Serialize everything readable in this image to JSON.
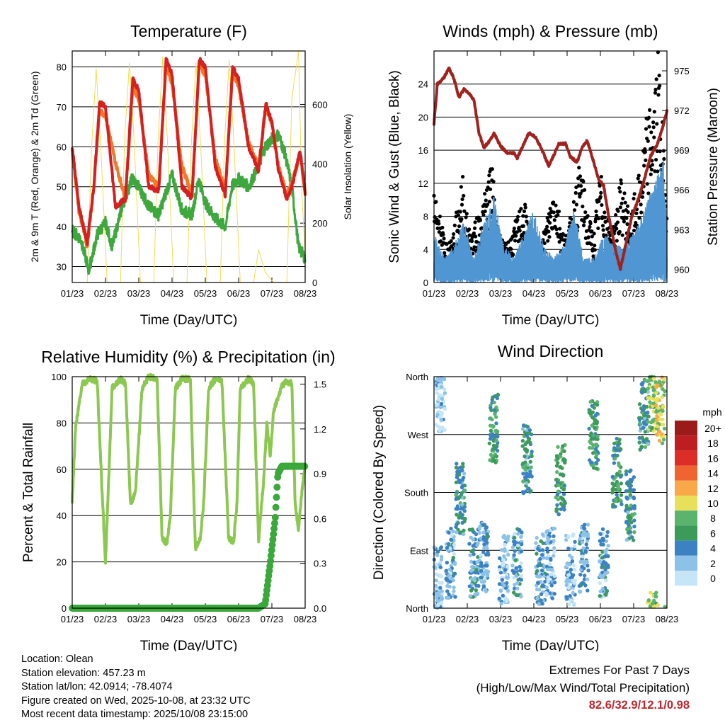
{
  "panels": {
    "temperature": {
      "title": "Temperature (F)",
      "ylabel": "2m & 9m T (Red, Orange) & 2m Td (Green)",
      "y2label": "Solar Insolation (Yellow)",
      "xlabel": "Time (Day/UTC)"
    },
    "winds": {
      "title": "Winds (mph) & Pressure (mb)",
      "ylabel": "Sonic Wind & Gust (Blue, Black)",
      "y2label": "Station Pressure (Maroon)",
      "xlabel": "Time (Day/UTC)"
    },
    "humidity": {
      "title": "Relative Humidity (%) & Precipitation (in)",
      "ylabel": "Percent & Total Rainfall",
      "xlabel": "Time (Day/UTC)"
    },
    "direction": {
      "title": "Wind Direction",
      "ylabel": "Direction (Colored By Speed)",
      "xlabel": "Time (Day/UTC)",
      "legend_title": "mph"
    }
  },
  "chart_data": [
    {
      "id": "temperature",
      "type": "line",
      "title": "Temperature (F)",
      "x_tick_labels": [
        "01/23",
        "02/23",
        "03/23",
        "04/23",
        "05/23",
        "06/23",
        "07/23",
        "08/23"
      ],
      "xlim": [
        0,
        7
      ],
      "ylim": [
        26,
        84
      ],
      "y_ticks": [
        30,
        40,
        50,
        60,
        70,
        80
      ],
      "y2lim": [
        0,
        780
      ],
      "y2_ticks": [
        0,
        200,
        400,
        600
      ],
      "series": [
        {
          "name": "2m T",
          "color": "#d42020",
          "x": [
            0.0,
            0.2,
            0.45,
            0.65,
            0.82,
            1.0,
            1.3,
            1.6,
            1.82,
            2.0,
            2.3,
            2.6,
            2.82,
            3.0,
            3.3,
            3.6,
            3.82,
            4.0,
            4.3,
            4.6,
            4.82,
            5.0,
            5.3,
            5.6,
            5.82,
            6.0,
            6.2,
            6.45,
            6.6,
            6.85,
            7.0
          ],
          "y": [
            60,
            45,
            36,
            50,
            71,
            70,
            45,
            47,
            77,
            74,
            50,
            49,
            82,
            78,
            50,
            47,
            82,
            80,
            55,
            48,
            80,
            77,
            60,
            54,
            71,
            66,
            54,
            47,
            50,
            59,
            48
          ]
        },
        {
          "name": "9m T",
          "color": "#f07828",
          "x": [
            0.0,
            0.2,
            0.45,
            0.65,
            0.82,
            1.0,
            1.3,
            1.6,
            1.82,
            2.0,
            2.3,
            2.6,
            2.82,
            3.0,
            3.3,
            3.6,
            3.82,
            4.0,
            4.3,
            4.6,
            4.82,
            5.0,
            5.3,
            5.6,
            5.82,
            6.0,
            6.2,
            6.45,
            6.6,
            6.85,
            7.0
          ],
          "y": [
            59,
            44,
            35,
            50,
            69,
            68,
            56,
            47,
            75,
            72,
            53,
            50,
            80,
            76,
            55,
            48,
            81,
            78,
            57,
            49,
            79,
            75,
            61,
            55,
            70,
            66,
            55,
            48,
            51,
            58,
            49
          ]
        },
        {
          "name": "2m Td",
          "color": "#3ea83e",
          "x": [
            0.0,
            0.25,
            0.5,
            0.75,
            1.0,
            1.2,
            1.5,
            1.8,
            2.0,
            2.3,
            2.6,
            2.8,
            3.0,
            3.3,
            3.6,
            3.8,
            4.0,
            4.3,
            4.6,
            4.8,
            5.0,
            5.3,
            5.6,
            5.8,
            6.0,
            6.2,
            6.4,
            6.6,
            6.8,
            7.0
          ],
          "y": [
            39,
            37,
            29,
            38,
            41,
            35,
            45,
            52,
            50,
            45,
            43,
            48,
            53,
            44,
            43,
            52,
            46,
            42,
            40,
            50,
            52,
            50,
            55,
            60,
            62,
            63,
            58,
            50,
            35,
            32
          ]
        },
        {
          "name": "Solar Insolation",
          "color": "#f0dc50",
          "axis": "y2",
          "x": [
            0.0,
            0.45,
            0.58,
            0.72,
            0.86,
            1.05,
            1.45,
            1.58,
            1.72,
            1.86,
            2.05,
            2.45,
            2.58,
            2.72,
            2.86,
            3.05,
            3.45,
            3.58,
            3.72,
            3.86,
            4.05,
            4.45,
            4.58,
            4.72,
            4.86,
            5.05,
            5.45,
            5.6,
            5.8,
            6.05,
            6.45,
            6.6,
            6.8,
            6.9,
            7.05
          ],
          "y": [
            0,
            0,
            450,
            720,
            450,
            0,
            0,
            500,
            740,
            480,
            0,
            0,
            480,
            760,
            480,
            0,
            0,
            470,
            740,
            460,
            0,
            0,
            480,
            750,
            470,
            0,
            0,
            110,
            35,
            0,
            0,
            620,
            780,
            300,
            0
          ]
        }
      ]
    },
    {
      "id": "winds",
      "type": "line",
      "title": "Winds (mph) & Pressure (mb)",
      "x_tick_labels": [
        "01/23",
        "02/23",
        "03/23",
        "04/23",
        "05/23",
        "06/23",
        "07/23",
        "08/23"
      ],
      "xlim": [
        0,
        7
      ],
      "ylim": [
        0,
        28
      ],
      "y_ticks": [
        0,
        4,
        8,
        12,
        16,
        20,
        24
      ],
      "y2lim": [
        959,
        976.5
      ],
      "y2_ticks": [
        960,
        963,
        966,
        969,
        972,
        975
      ],
      "series": [
        {
          "name": "Sonic Wind",
          "color": "#4f96d2",
          "style": "band",
          "x": [
            0.0,
            0.3,
            0.6,
            0.9,
            1.2,
            1.5,
            1.8,
            2.1,
            2.4,
            2.7,
            3.0,
            3.3,
            3.6,
            3.9,
            4.2,
            4.5,
            4.8,
            5.1,
            5.4,
            5.7,
            6.0,
            6.3,
            6.6,
            6.9,
            7.0
          ],
          "y": [
            4,
            2,
            3,
            5,
            2,
            5,
            7,
            3,
            2,
            4,
            6,
            3,
            2,
            3,
            6,
            2,
            2,
            4,
            3,
            3,
            4,
            6,
            8,
            10,
            4
          ]
        },
        {
          "name": "Gust",
          "color": "#000000",
          "style": "points",
          "x": [
            0.0,
            0.1,
            0.2,
            0.3,
            0.45,
            0.6,
            0.75,
            0.85,
            0.95,
            1.1,
            1.3,
            1.5,
            1.7,
            1.8,
            1.9,
            2.1,
            2.3,
            2.5,
            2.7,
            2.85,
            3.0,
            3.2,
            3.4,
            3.6,
            3.75,
            3.9,
            4.05,
            4.2,
            4.4,
            4.6,
            4.8,
            4.9,
            5.0,
            5.2,
            5.4,
            5.6,
            5.8,
            5.9,
            6.0,
            6.2,
            6.4,
            6.6,
            6.75,
            6.85,
            6.95
          ],
          "y": [
            14,
            6,
            8,
            5,
            4,
            6,
            9,
            12,
            8,
            5,
            7,
            9,
            13,
            11,
            6,
            4,
            5,
            7,
            9,
            6,
            5,
            4,
            7,
            11,
            8,
            5,
            6,
            9,
            13,
            8,
            5,
            9,
            12,
            7,
            6,
            11,
            9,
            6,
            9,
            12,
            18,
            20,
            25,
            18,
            11
          ]
        },
        {
          "name": "Station Pressure",
          "color": "#a0221e",
          "axis": "y2",
          "x": [
            0.0,
            0.1,
            0.3,
            0.45,
            0.6,
            0.75,
            0.9,
            1.05,
            1.2,
            1.35,
            1.5,
            1.7,
            1.8,
            2.0,
            2.2,
            2.4,
            2.5,
            2.7,
            2.85,
            3.05,
            3.25,
            3.45,
            3.6,
            3.75,
            3.95,
            4.1,
            4.3,
            4.45,
            4.6,
            4.8,
            4.95,
            5.1,
            5.25,
            5.45,
            5.6,
            5.8,
            5.95,
            6.1,
            6.3,
            6.5,
            6.7,
            6.85,
            7.0
          ],
          "y": [
            971,
            974,
            974.5,
            975.2,
            974.4,
            973,
            973.6,
            973.3,
            972.8,
            970.3,
            969.2,
            969.8,
            970.3,
            969.3,
            968.8,
            968.8,
            968.4,
            969.5,
            970.3,
            970,
            969,
            967.8,
            968.6,
            969.5,
            969.5,
            968.5,
            968.1,
            969.2,
            969.7,
            968.1,
            966.8,
            966.3,
            964,
            961.5,
            960,
            962.3,
            964,
            965,
            966.6,
            968.5,
            969.4,
            970.5,
            972
          ]
        }
      ]
    },
    {
      "id": "humidity",
      "type": "line",
      "title": "Relative Humidity (%) & Precipitation (in)",
      "x_tick_labels": [
        "01/23",
        "02/23",
        "03/23",
        "04/23",
        "05/23",
        "06/23",
        "07/23",
        "08/23"
      ],
      "xlim": [
        0,
        7
      ],
      "ylim": [
        0,
        100
      ],
      "y_ticks": [
        0,
        20,
        40,
        60,
        80,
        100
      ],
      "y2lim": [
        0,
        1.55
      ],
      "y2_ticks": [
        "0.0",
        "0.3",
        "0.6",
        "0.9",
        "1.2",
        "1.5"
      ],
      "series": [
        {
          "name": "Relative Humidity",
          "color": "#8cc850",
          "x": [
            0.0,
            0.1,
            0.3,
            0.55,
            0.75,
            0.9,
            1.0,
            1.2,
            1.45,
            1.6,
            1.75,
            1.9,
            2.1,
            2.3,
            2.55,
            2.7,
            2.85,
            2.95,
            3.1,
            3.3,
            3.55,
            3.7,
            3.85,
            3.95,
            4.1,
            4.3,
            4.5,
            4.7,
            4.85,
            4.95,
            5.05,
            5.3,
            5.45,
            5.6,
            5.75,
            5.85,
            5.95,
            6.05,
            6.3,
            6.45,
            6.6,
            6.7,
            6.8,
            6.9,
            7.0
          ],
          "y": [
            46,
            78,
            97,
            99,
            98,
            50,
            20,
            95,
            99,
            97,
            45,
            50,
            95,
            100,
            99,
            30,
            28,
            40,
            95,
            99,
            99,
            26,
            30,
            45,
            95,
            99,
            98,
            30,
            29,
            45,
            95,
            99,
            97,
            29,
            55,
            80,
            65,
            85,
            96,
            98,
            97,
            45,
            34,
            50,
            62
          ]
        },
        {
          "name": "Total Rainfall",
          "color": "#3aa83a",
          "axis": "y2",
          "x": [
            0.0,
            5.6,
            5.8,
            5.95,
            6.1,
            6.18,
            6.3,
            6.6,
            7.0
          ],
          "y": [
            0.0,
            0.0,
            0.03,
            0.3,
            0.6,
            0.9,
            0.95,
            0.95,
            0.95
          ]
        }
      ]
    },
    {
      "id": "direction",
      "type": "scatter",
      "title": "Wind Direction",
      "x_tick_labels": [
        "01/23",
        "02/23",
        "03/23",
        "04/23",
        "05/23",
        "06/23",
        "07/23",
        "08/23"
      ],
      "xlim": [
        0,
        7
      ],
      "ylim": [
        0,
        360
      ],
      "y_tick_labels": [
        "North",
        "East",
        "South",
        "West",
        "North"
      ],
      "colorbar_labels": [
        "20+",
        "18",
        "16",
        "14",
        "12",
        "10",
        "8",
        "6",
        "4",
        "2",
        "0"
      ],
      "colorbar_colors": [
        "#9b1b1b",
        "#be1e22",
        "#dc2d28",
        "#f06432",
        "#f8a848",
        "#e8e05a",
        "#5ab46e",
        "#3c9a5a",
        "#3c82c3",
        "#8cc2e8",
        "#c6e6f8"
      ],
      "clusters": [
        {
          "x": 0.1,
          "dir": 40,
          "speed": 2
        },
        {
          "x": 0.2,
          "dir": 330,
          "speed": 1
        },
        {
          "x": 0.5,
          "dir": 70,
          "speed": 3
        },
        {
          "x": 0.8,
          "dir": 170,
          "speed": 5
        },
        {
          "x": 1.2,
          "dir": 70,
          "speed": 4
        },
        {
          "x": 1.5,
          "dir": 80,
          "speed": 3
        },
        {
          "x": 1.8,
          "dir": 280,
          "speed": 6
        },
        {
          "x": 2.1,
          "dir": 60,
          "speed": 2
        },
        {
          "x": 2.5,
          "dir": 70,
          "speed": 3
        },
        {
          "x": 2.8,
          "dir": 230,
          "speed": 5
        },
        {
          "x": 3.2,
          "dir": 60,
          "speed": 3
        },
        {
          "x": 3.5,
          "dir": 70,
          "speed": 2
        },
        {
          "x": 3.8,
          "dir": 200,
          "speed": 6
        },
        {
          "x": 4.1,
          "dir": 60,
          "speed": 2
        },
        {
          "x": 4.5,
          "dir": 80,
          "speed": 3
        },
        {
          "x": 4.8,
          "dir": 270,
          "speed": 6
        },
        {
          "x": 5.1,
          "dir": 70,
          "speed": 3
        },
        {
          "x": 5.5,
          "dir": 210,
          "speed": 6
        },
        {
          "x": 5.9,
          "dir": 160,
          "speed": 5
        },
        {
          "x": 6.3,
          "dir": 300,
          "speed": 5
        },
        {
          "x": 6.55,
          "dir": 330,
          "speed": 8
        },
        {
          "x": 6.8,
          "dir": 310,
          "speed": 10
        }
      ]
    }
  ],
  "footer": {
    "location": "Location: Olean",
    "elevation": "Station elevation: 457.23 m",
    "latlon": "Station lat/lon: 42.0914; -78.4074",
    "created": "Figure created on Wed, 2025-10-08, at 23:32 UTC",
    "timestamp": "Most recent data timestamp: 2025/10/08 23:15:00",
    "extremes_title": "Extremes For Past 7 Days",
    "extremes_subtitle": "(High/Low/Max Wind/Total Precipitation)",
    "extremes_values": "82.6/32.9/12.1/0.98"
  }
}
